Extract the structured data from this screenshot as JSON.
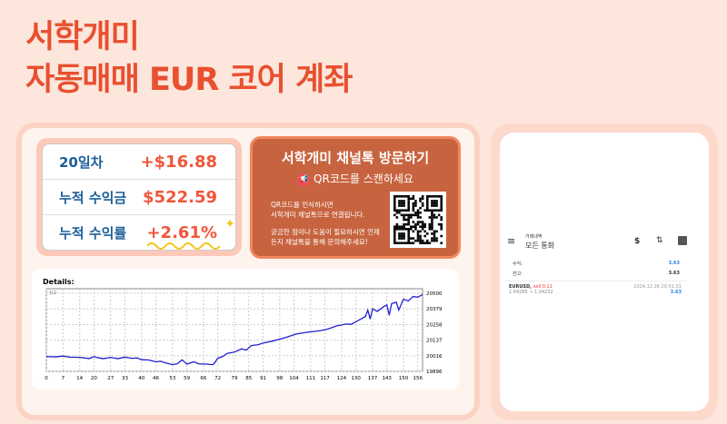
{
  "title": {
    "line1": "서학개미",
    "line2": "자동매매 EUR 코어 계좌"
  },
  "stats": [
    {
      "label": "20일차",
      "value": "+$16.88"
    },
    {
      "label": "누적 수익금",
      "value": "$522.59"
    },
    {
      "label": "누적 수익률",
      "value": "+2.61%"
    }
  ],
  "qr": {
    "title": "서학개미 채널톡 방문하기",
    "subtitle": "QR코드를 스캔하세요",
    "icon": "megaphone-icon",
    "text1a": "QR코드를 인식하시면",
    "text1b": "서학개미 채널톡으로 연결됩니다.",
    "text2a": "궁금한 점이나 도움이 필요하시면 언제",
    "text2b": "든지 채널톡을 통해 문의해주세요!"
  },
  "chart_data": {
    "type": "line",
    "title": "Details:",
    "legend": "잔고",
    "x_ticks": [
      0,
      7,
      14,
      20,
      27,
      33,
      40,
      46,
      53,
      59,
      66,
      72,
      79,
      85,
      91,
      98,
      104,
      111,
      117,
      124,
      130,
      137,
      143,
      150,
      156
    ],
    "y_ticks": [
      19896,
      20016,
      20137,
      20258,
      20379,
      20500
    ],
    "ylim": [
      19896,
      20500
    ],
    "xlim": [
      0,
      158
    ],
    "grid": true,
    "color": "#2020d0",
    "x": [
      0,
      4,
      7,
      10,
      14,
      18,
      20,
      22,
      24,
      27,
      30,
      33,
      36,
      38,
      40,
      43,
      46,
      48,
      50,
      53,
      55,
      57,
      59,
      62,
      64,
      67,
      70,
      71,
      72,
      74,
      76,
      79,
      82,
      84,
      86,
      89,
      91,
      95,
      100,
      105,
      110,
      115,
      118,
      122,
      126,
      128,
      131,
      134,
      135,
      136,
      137,
      139,
      142,
      143,
      144,
      145,
      147,
      148,
      150,
      152,
      154,
      156,
      158
    ],
    "y": [
      20010,
      20008,
      20014,
      20006,
      20004,
      19995,
      20010,
      20000,
      19994,
      20004,
      19994,
      20006,
      19996,
      20000,
      19986,
      19984,
      19970,
      19974,
      19962,
      19948,
      19955,
      19985,
      19952,
      19970,
      19954,
      19952,
      19948,
      19970,
      19998,
      20010,
      20035,
      20045,
      20070,
      20060,
      20095,
      20102,
      20115,
      20130,
      20155,
      20185,
      20200,
      20210,
      20222,
      20248,
      20262,
      20260,
      20290,
      20320,
      20370,
      20300,
      20380,
      20360,
      20400,
      20410,
      20330,
      20420,
      20430,
      20370,
      20455,
      20440,
      20475,
      20470,
      20490
    ]
  },
  "phone": {
    "small": "거래내역",
    "title": "모든 통화",
    "profit_label": "수익:",
    "profit": "3.63",
    "balance_label": "잔고:",
    "balance": "3.63",
    "trade": {
      "symbol": "EURUSD,",
      "side": "sell 0.11",
      "prices": "1.04265 → 1.04232",
      "time": "2024.12.26 20:51:01",
      "pl": "3.63"
    }
  }
}
